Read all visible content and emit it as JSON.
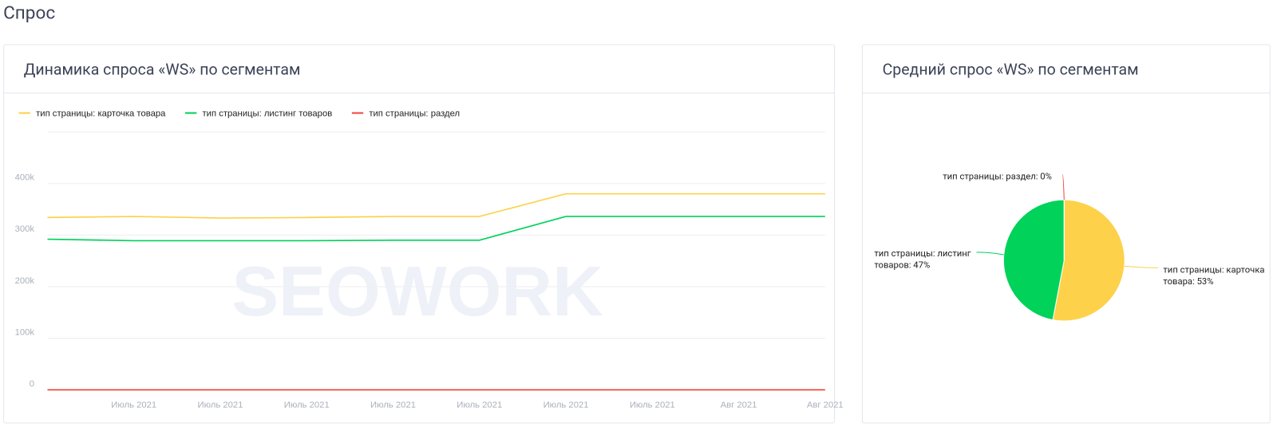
{
  "header": {
    "title": "Спрос"
  },
  "chart_data": [
    {
      "type": "line",
      "title": "Динамика спроса «WS» по сегментам",
      "watermark": "SEOWORK",
      "categories": [
        null,
        "Июль 2021",
        "Июль 2021",
        "Июль 2021",
        "Июль 2021",
        "Июль 2021",
        "Июль 2021",
        "Июль 2021",
        "Авг 2021",
        "Авг 2021"
      ],
      "series": [
        {
          "name": "тип страницы: карточка товара",
          "color": "#fdd14a",
          "values": [
            334000,
            336000,
            333000,
            334000,
            336000,
            336000,
            380000,
            380000,
            380000,
            380000
          ]
        },
        {
          "name": "тип страницы: листинг товаров",
          "color": "#00d25a",
          "values": [
            292000,
            289000,
            289000,
            289000,
            290000,
            290000,
            336000,
            336000,
            336000,
            336000
          ]
        },
        {
          "name": "тип страницы: раздел",
          "color": "#f2453d",
          "values": [
            0,
            0,
            0,
            0,
            0,
            0,
            0,
            0,
            0,
            0
          ]
        }
      ],
      "ylim": [
        0,
        500000
      ],
      "yticks": [
        0,
        {
          "value": 100000,
          "label": "100k"
        },
        {
          "value": 200000,
          "label": "200k"
        },
        {
          "value": 300000,
          "label": "300k"
        },
        {
          "value": 400000,
          "label": "400k"
        }
      ],
      "grid": true,
      "legend": "top-left"
    },
    {
      "type": "pie",
      "title": "Средний спрос «WS» по сегментам",
      "categories": [
        "тип страницы: карточка товара",
        "тип страницы: листинг товаров",
        "тип страницы: раздел"
      ],
      "values": [
        53,
        47,
        0
      ],
      "value_labels": [
        "тип страницы: карточка товара: 53%",
        "тип страницы: листинг товаров: 47%",
        "тип страницы: раздел: 0%"
      ],
      "colors": [
        "#fdd14a",
        "#00d25a",
        "#f2453d"
      ]
    }
  ]
}
